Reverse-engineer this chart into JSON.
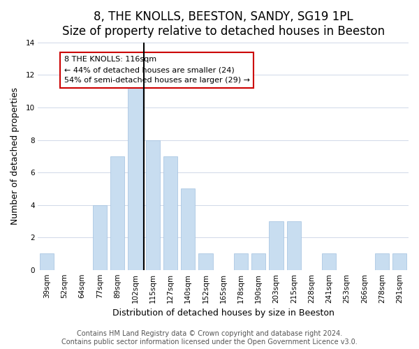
{
  "title": "8, THE KNOLLS, BEESTON, SANDY, SG19 1PL",
  "subtitle": "Size of property relative to detached houses in Beeston",
  "xlabel": "Distribution of detached houses by size in Beeston",
  "ylabel": "Number of detached properties",
  "bin_labels": [
    "39sqm",
    "52sqm",
    "64sqm",
    "77sqm",
    "89sqm",
    "102sqm",
    "115sqm",
    "127sqm",
    "140sqm",
    "152sqm",
    "165sqm",
    "178sqm",
    "190sqm",
    "203sqm",
    "215sqm",
    "228sqm",
    "241sqm",
    "253sqm",
    "266sqm",
    "278sqm",
    "291sqm"
  ],
  "bar_heights": [
    1,
    0,
    0,
    4,
    7,
    12,
    8,
    7,
    5,
    1,
    0,
    1,
    1,
    3,
    3,
    0,
    1,
    0,
    0,
    1,
    1
  ],
  "bar_color": "#c8ddf0",
  "marker_label": "8 THE KNOLLS: 116sqm",
  "annotation_line1": "← 44% of detached houses are smaller (24)",
  "annotation_line2": "54% of semi-detached houses are larger (29) →",
  "annotation_box_color": "#ffffff",
  "annotation_box_edgecolor": "#cc0000",
  "marker_line_color": "#000000",
  "ylim": [
    0,
    14
  ],
  "yticks": [
    0,
    2,
    4,
    6,
    8,
    10,
    12,
    14
  ],
  "footer_line1": "Contains HM Land Registry data © Crown copyright and database right 2024.",
  "footer_line2": "Contains public sector information licensed under the Open Government Licence v3.0.",
  "title_fontsize": 12,
  "subtitle_fontsize": 10,
  "axis_label_fontsize": 9,
  "tick_fontsize": 7.5,
  "footer_fontsize": 7
}
